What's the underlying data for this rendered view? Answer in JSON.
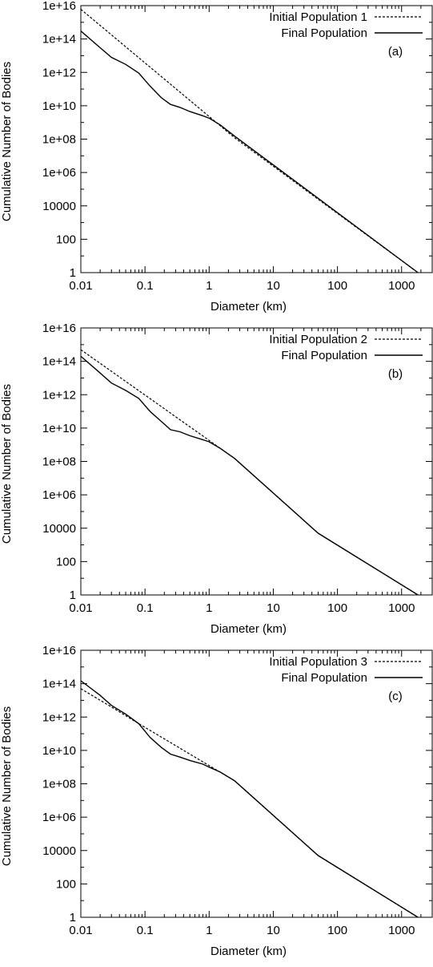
{
  "chart_data": [
    {
      "type": "line",
      "panel_label": "(a)",
      "xlabel": "Diameter (km)",
      "ylabel": "Cumulative Number of Bodies",
      "xscale": "log",
      "yscale": "log",
      "xlim": [
        0.01,
        3000
      ],
      "ylim": [
        1,
        1e+16
      ],
      "xticks": [
        {
          "value": 0.01,
          "label": "0.01"
        },
        {
          "value": 0.1,
          "label": "0.1"
        },
        {
          "value": 1,
          "label": "1"
        },
        {
          "value": 10,
          "label": "10"
        },
        {
          "value": 100,
          "label": "100"
        },
        {
          "value": 1000,
          "label": "1000"
        }
      ],
      "yticks": [
        {
          "value": 1,
          "label": "1"
        },
        {
          "value": 100,
          "label": "100"
        },
        {
          "value": 10000,
          "label": "10000"
        },
        {
          "value": 1000000.0,
          "label": "1e+06"
        },
        {
          "value": 100000000.0,
          "label": "1e+08"
        },
        {
          "value": 10000000000.0,
          "label": "1e+10"
        },
        {
          "value": 1000000000000.0,
          "label": "1e+12"
        },
        {
          "value": 100000000000000.0,
          "label": "1e+14"
        },
        {
          "value": 1e+16,
          "label": "1e+16"
        }
      ],
      "legend_position": "top-right",
      "series": [
        {
          "name": "Initial Population 1",
          "style": "dashed",
          "points": [
            [
              0.01,
              6000000000000000.0
            ],
            [
              2.5,
              120000000.0
            ],
            [
              1800,
              1
            ]
          ]
        },
        {
          "name": "Final Population",
          "style": "solid",
          "points": [
            [
              0.01,
              300000000000000.0
            ],
            [
              0.02,
              30000000000000.0
            ],
            [
              0.03,
              8000000000000.0
            ],
            [
              0.05,
              3000000000000.0
            ],
            [
              0.08,
              900000000000.0
            ],
            [
              0.12,
              150000000000.0
            ],
            [
              0.18,
              30000000000.0
            ],
            [
              0.25,
              12000000000.0
            ],
            [
              0.35,
              8000000000.0
            ],
            [
              0.5,
              4500000000.0
            ],
            [
              0.8,
              2500000000.0
            ],
            [
              1.0,
              1800000000.0
            ],
            [
              1.5,
              700000000.0
            ],
            [
              2.5,
              150000000.0
            ],
            [
              1800,
              1
            ]
          ]
        }
      ]
    },
    {
      "type": "line",
      "panel_label": "(b)",
      "xlabel": "Diameter (km)",
      "ylabel": "Cumulative Number of Bodies",
      "xscale": "log",
      "yscale": "log",
      "xlim": [
        0.01,
        3000
      ],
      "ylim": [
        1,
        1e+16
      ],
      "xticks": [
        {
          "value": 0.01,
          "label": "0.01"
        },
        {
          "value": 0.1,
          "label": "0.1"
        },
        {
          "value": 1,
          "label": "1"
        },
        {
          "value": 10,
          "label": "10"
        },
        {
          "value": 100,
          "label": "100"
        },
        {
          "value": 1000,
          "label": "1000"
        }
      ],
      "yticks": [
        {
          "value": 1,
          "label": "1"
        },
        {
          "value": 100,
          "label": "100"
        },
        {
          "value": 10000,
          "label": "10000"
        },
        {
          "value": 1000000.0,
          "label": "1e+06"
        },
        {
          "value": 100000000.0,
          "label": "1e+08"
        },
        {
          "value": 10000000000.0,
          "label": "1e+10"
        },
        {
          "value": 1000000000000.0,
          "label": "1e+12"
        },
        {
          "value": 100000000000000.0,
          "label": "1e+14"
        },
        {
          "value": 1e+16,
          "label": "1e+16"
        }
      ],
      "legend_position": "top-right",
      "series": [
        {
          "name": "Initial Population 2",
          "style": "dashed",
          "points": [
            [
              0.01,
              500000000000000.0
            ],
            [
              2.5,
              150000000.0
            ],
            [
              50,
              5000
            ],
            [
              1800,
              1
            ]
          ]
        },
        {
          "name": "Final Population",
          "style": "solid",
          "points": [
            [
              0.01,
              200000000000000.0
            ],
            [
              0.02,
              20000000000000.0
            ],
            [
              0.03,
              5000000000000.0
            ],
            [
              0.05,
              1800000000000.0
            ],
            [
              0.08,
              600000000000.0
            ],
            [
              0.12,
              100000000000.0
            ],
            [
              0.18,
              25000000000.0
            ],
            [
              0.25,
              8000000000.0
            ],
            [
              0.35,
              6000000000.0
            ],
            [
              0.5,
              3500000000.0
            ],
            [
              0.8,
              2000000000.0
            ],
            [
              1.0,
              1500000000.0
            ],
            [
              1.5,
              600000000.0
            ],
            [
              2.5,
              150000000.0
            ],
            [
              50,
              5000
            ],
            [
              1800,
              1
            ]
          ]
        }
      ]
    },
    {
      "type": "line",
      "panel_label": "(c)",
      "xlabel": "Diameter (km)",
      "ylabel": "Cumulative Number of Bodies",
      "xscale": "log",
      "yscale": "log",
      "xlim": [
        0.01,
        3000
      ],
      "ylim": [
        1,
        1e+16
      ],
      "xticks": [
        {
          "value": 0.01,
          "label": "0.01"
        },
        {
          "value": 0.1,
          "label": "0.1"
        },
        {
          "value": 1,
          "label": "1"
        },
        {
          "value": 10,
          "label": "10"
        },
        {
          "value": 100,
          "label": "100"
        },
        {
          "value": 1000,
          "label": "1000"
        }
      ],
      "yticks": [
        {
          "value": 1,
          "label": "1"
        },
        {
          "value": 100,
          "label": "100"
        },
        {
          "value": 10000,
          "label": "10000"
        },
        {
          "value": 1000000.0,
          "label": "1e+06"
        },
        {
          "value": 100000000.0,
          "label": "1e+08"
        },
        {
          "value": 10000000000.0,
          "label": "1e+10"
        },
        {
          "value": 1000000000000.0,
          "label": "1e+12"
        },
        {
          "value": 100000000000000.0,
          "label": "1e+14"
        },
        {
          "value": 1e+16,
          "label": "1e+16"
        }
      ],
      "legend_position": "top-right",
      "series": [
        {
          "name": "Initial Population 3",
          "style": "dashed",
          "points": [
            [
              0.01,
              50000000000000.0
            ],
            [
              0.03,
              4000000000000.0
            ],
            [
              0.08,
              400000000000.0
            ],
            [
              2.5,
              150000000.0
            ],
            [
              50,
              5000
            ],
            [
              1800,
              1
            ]
          ]
        },
        {
          "name": "Final Population",
          "style": "solid",
          "points": [
            [
              0.01,
              150000000000000.0
            ],
            [
              0.02,
              20000000000000.0
            ],
            [
              0.03,
              5000000000000.0
            ],
            [
              0.05,
              1500000000000.0
            ],
            [
              0.08,
              400000000000.0
            ],
            [
              0.12,
              60000000000.0
            ],
            [
              0.18,
              15000000000.0
            ],
            [
              0.25,
              6000000000.0
            ],
            [
              0.35,
              4000000000.0
            ],
            [
              0.5,
              2500000000.0
            ],
            [
              0.8,
              1500000000.0
            ],
            [
              1.0,
              1000000000.0
            ],
            [
              1.5,
              500000000.0
            ],
            [
              2.5,
              150000000.0
            ],
            [
              50,
              5000
            ],
            [
              1800,
              1
            ]
          ]
        }
      ]
    }
  ]
}
